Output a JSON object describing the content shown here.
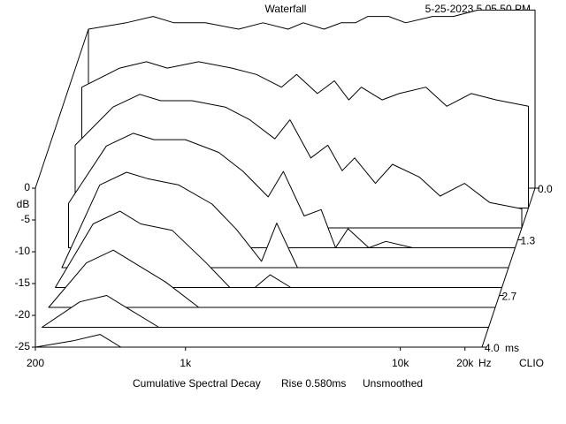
{
  "chart_data": {
    "type": "waterfall",
    "title": "Waterfall",
    "timestamp": "5-25-2023 5.05.50 PM",
    "y_label": "dB",
    "x_unit": "Hz",
    "z_unit": "ms",
    "brand": "CLIO",
    "caption": [
      "Cumulative Spectral Decay",
      "Rise 0.580ms",
      "Unsmoothed"
    ],
    "log_x": true,
    "xlim": [
      200,
      24000
    ],
    "xticks": [
      200,
      {
        "value": 1000,
        "label": "1k"
      },
      {
        "value": 10000,
        "label": "10k"
      },
      {
        "value": 20000,
        "label": "20k"
      }
    ],
    "ylim": [
      -25,
      0
    ],
    "yticks": [
      0,
      -5,
      -10,
      -15,
      -20,
      -25
    ],
    "zlim": [
      0,
      4
    ],
    "zticks": [
      {
        "value": 0,
        "label": "0.0"
      },
      1.3,
      2.7,
      {
        "value": 4,
        "label": "4.0"
      }
    ],
    "color": "#000000",
    "x": [
      200,
      300,
      400,
      500,
      700,
      1000,
      1300,
      1700,
      2000,
      2500,
      3000,
      3500,
      4000,
      5000,
      6000,
      8000,
      10000,
      13000,
      17000,
      24000
    ],
    "slices": [
      {
        "t": 0,
        "values": [
          0,
          1,
          2,
          1,
          1,
          0,
          1,
          0,
          1,
          0,
          1,
          1,
          2,
          2,
          1,
          2,
          2,
          3,
          3,
          3
        ]
      },
      {
        "t": 0.5,
        "values": [
          -6,
          -3,
          -2,
          -3,
          -2,
          -3,
          -4,
          -6,
          -4,
          -7,
          -5,
          -8,
          -6,
          -8,
          -7,
          -6,
          -9,
          -7,
          -8,
          -9
        ]
      },
      {
        "t": 1,
        "values": [
          -12,
          -6,
          -4,
          -5,
          -5,
          -6,
          -8,
          -11,
          -8,
          -14,
          -12,
          -16,
          -14,
          -18,
          -15,
          -17,
          -20,
          -18,
          -21,
          -22
        ]
      },
      {
        "t": 1.5,
        "values": [
          -18,
          -9,
          -7,
          -8,
          -8,
          -10,
          -13,
          -17,
          -13,
          -20,
          -19,
          -25,
          -22,
          -25,
          -24,
          -25,
          -25,
          -25,
          -25,
          -25
        ]
      },
      {
        "t": 2,
        "values": [
          -25,
          -12,
          -10,
          -11,
          -12,
          -15,
          -19,
          -24,
          -18,
          -25,
          -25,
          -25,
          -25,
          -25,
          -25,
          -25,
          -25,
          -25,
          -25,
          -25
        ]
      },
      {
        "t": 2.5,
        "values": [
          -25,
          -15,
          -13,
          -15,
          -16,
          -21,
          -25,
          -25,
          -23,
          -25,
          -25,
          -25,
          -25,
          -25,
          -25,
          -25,
          -25,
          -25,
          -25,
          -25
        ]
      },
      {
        "t": 3,
        "values": [
          -25,
          -18,
          -16,
          -18,
          -21,
          -25,
          -25,
          -25,
          -25,
          -25,
          -25,
          -25,
          -25,
          -25,
          -25,
          -25,
          -25,
          -25,
          -25,
          -25
        ]
      },
      {
        "t": 3.5,
        "values": [
          -25,
          -21,
          -20,
          -22,
          -25,
          -25,
          -25,
          -25,
          -25,
          -25,
          -25,
          -25,
          -25,
          -25,
          -25,
          -25,
          -25,
          -25,
          -25,
          -25
        ]
      },
      {
        "t": 4,
        "values": [
          -25,
          -24,
          -23,
          -25,
          -25,
          -25,
          -25,
          -25,
          -25,
          -25,
          -25,
          -25,
          -25,
          -25,
          -25,
          -25,
          -25,
          -25,
          -25,
          -25
        ]
      }
    ]
  }
}
